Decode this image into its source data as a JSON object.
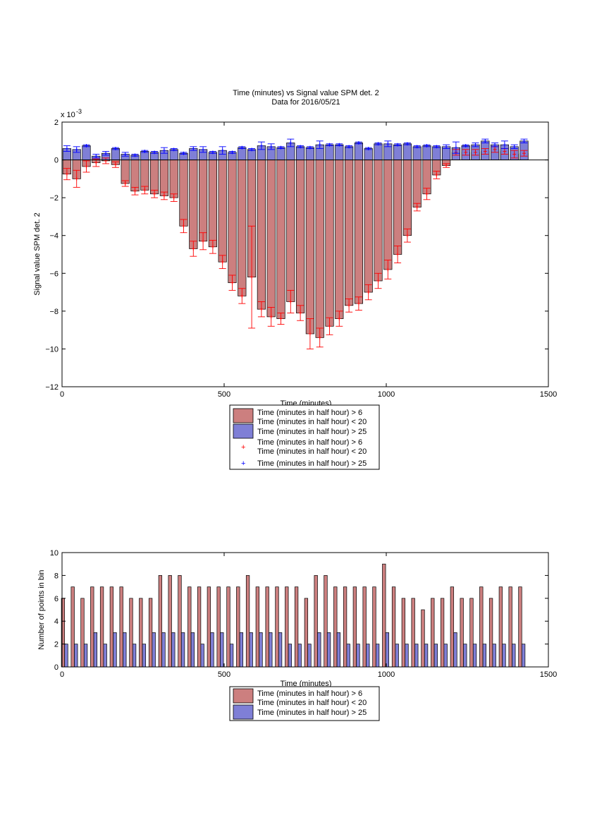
{
  "chart_data": [
    {
      "type": "bar",
      "title": "Time (minutes) vs Signal value SPM det. 2",
      "subtitle": "Data for 2016/05/21",
      "xlabel": "Time (minutes)",
      "ylabel": "Signal value SPM det. 2",
      "y_exponent_label": "x 10",
      "y_exponent_power": "-3",
      "xlim": [
        0,
        1500
      ],
      "ylim": [
        -12,
        2
      ],
      "xticks": [
        "0",
        "500",
        "1000",
        "1500"
      ],
      "yticks": [
        "2",
        "0",
        "−2",
        "−4",
        "−6",
        "−8",
        "−10",
        "−12"
      ],
      "bar_width": 25,
      "legend_position": "below-center",
      "legend": [
        {
          "label": "Time (minutes in half hour) > 6",
          "label2": "Time (minutes in half hour) < 20",
          "kind": "bar",
          "color": "#cc7f7f"
        },
        {
          "label": "Time (minutes in half hour) > 25",
          "kind": "bar",
          "color": "#7f7fd6"
        },
        {
          "label": "Time (minutes in half hour) > 6",
          "label2": "Time (minutes in half hour) < 20",
          "kind": "marker",
          "color": "#ff0000"
        },
        {
          "label": "Time (minutes in half hour) > 25",
          "kind": "marker",
          "color": "#0000ff"
        }
      ],
      "series": [
        {
          "name": "Time (minutes in half hour) > 6, < 20",
          "color": "#cc7f7f",
          "errcolor": "#ff0000",
          "x": [
            15,
            45,
            75,
            105,
            135,
            165,
            195,
            225,
            255,
            285,
            315,
            345,
            375,
            405,
            435,
            465,
            495,
            525,
            555,
            585,
            615,
            645,
            675,
            705,
            735,
            765,
            795,
            825,
            855,
            885,
            915,
            945,
            975,
            1005,
            1035,
            1065,
            1095,
            1125,
            1155,
            1185,
            1215,
            1245,
            1275,
            1305,
            1335,
            1365,
            1395,
            1425
          ],
          "values": [
            -0.75,
            -1.0,
            -0.35,
            -0.15,
            -0.05,
            -0.25,
            -1.25,
            -1.65,
            -1.6,
            -1.8,
            -1.9,
            -2.0,
            -3.5,
            -4.7,
            -4.3,
            -4.6,
            -5.4,
            -6.5,
            -7.2,
            -6.2,
            -7.9,
            -8.3,
            -8.4,
            -7.5,
            -8.1,
            -9.2,
            -9.4,
            -8.8,
            -8.4,
            -7.7,
            -7.6,
            -7.0,
            -6.4,
            -5.8,
            -5.0,
            -4.0,
            -2.5,
            -1.8,
            -0.8,
            -0.3,
            0.4,
            0.4,
            0.4,
            0.45,
            0.55,
            0.45,
            0.3,
            0.35
          ],
          "err": [
            0.3,
            0.45,
            0.3,
            0.2,
            0.15,
            0.15,
            0.15,
            0.2,
            0.2,
            0.2,
            0.2,
            0.2,
            0.35,
            0.4,
            0.45,
            0.35,
            0.35,
            0.4,
            0.4,
            2.7,
            0.4,
            0.5,
            0.3,
            0.6,
            0.4,
            0.8,
            0.5,
            0.45,
            0.4,
            0.35,
            0.35,
            0.4,
            0.4,
            0.5,
            0.45,
            0.35,
            0.2,
            0.3,
            0.2,
            0.1,
            0.15,
            0.15,
            0.15,
            0.15,
            0.15,
            0.15,
            0.2,
            0.15
          ]
        },
        {
          "name": "Time (minutes in half hour) > 25",
          "color": "#7f7fd6",
          "errcolor": "#0000ff",
          "x": [
            15,
            45,
            75,
            105,
            135,
            165,
            195,
            225,
            255,
            285,
            315,
            345,
            375,
            405,
            435,
            465,
            495,
            525,
            555,
            585,
            615,
            645,
            675,
            705,
            735,
            765,
            795,
            825,
            855,
            885,
            915,
            945,
            975,
            1005,
            1035,
            1065,
            1095,
            1125,
            1155,
            1185,
            1215,
            1245,
            1275,
            1305,
            1335,
            1365,
            1395,
            1425
          ],
          "values": [
            0.6,
            0.55,
            0.75,
            0.2,
            0.35,
            0.6,
            0.3,
            0.25,
            0.45,
            0.4,
            0.5,
            0.55,
            0.35,
            0.6,
            0.55,
            0.4,
            0.5,
            0.4,
            0.65,
            0.55,
            0.75,
            0.7,
            0.65,
            0.9,
            0.7,
            0.65,
            0.8,
            0.8,
            0.8,
            0.7,
            0.9,
            0.6,
            0.85,
            0.85,
            0.8,
            0.85,
            0.7,
            0.75,
            0.7,
            0.7,
            0.65,
            0.75,
            0.8,
            1.0,
            0.8,
            0.8,
            0.7,
            1.0
          ],
          "err": [
            0.15,
            0.15,
            0.05,
            0.1,
            0.1,
            0.05,
            0.1,
            0.05,
            0.05,
            0.05,
            0.15,
            0.05,
            0.05,
            0.1,
            0.15,
            0.05,
            0.2,
            0.05,
            0.05,
            0.05,
            0.2,
            0.15,
            0.05,
            0.2,
            0.05,
            0.05,
            0.2,
            0.05,
            0.05,
            0.05,
            0.05,
            0.05,
            0.05,
            0.15,
            0.05,
            0.05,
            0.05,
            0.05,
            0.05,
            0.1,
            0.3,
            0.05,
            0.1,
            0.1,
            0.1,
            0.2,
            0.1,
            0.1
          ]
        }
      ]
    },
    {
      "type": "bar",
      "xlabel": "Time (minutes)",
      "ylabel": "Number of points in bin",
      "xlim": [
        0,
        1500
      ],
      "ylim": [
        0,
        10
      ],
      "xticks": [
        "0",
        "500",
        "1000",
        "1500"
      ],
      "yticks": [
        "0",
        "2",
        "4",
        "6",
        "8",
        "10"
      ],
      "legend_position": "below-center",
      "legend": [
        {
          "label": "Time (minutes in half hour) > 6",
          "label2": "Time (minutes in half hour) < 20",
          "color": "#cc7f7f"
        },
        {
          "label": "Time (minutes in half hour) > 25",
          "color": "#7f7fd6"
        }
      ],
      "series": [
        {
          "name": "Time (minutes in half hour) > 6, < 20",
          "color": "#cc7f7f",
          "x": [
            3,
            33,
            63,
            93,
            123,
            153,
            183,
            213,
            243,
            273,
            303,
            333,
            363,
            393,
            423,
            453,
            483,
            513,
            543,
            573,
            603,
            633,
            663,
            693,
            723,
            753,
            783,
            813,
            843,
            873,
            903,
            933,
            963,
            993,
            1023,
            1053,
            1083,
            1113,
            1143,
            1173,
            1203,
            1233,
            1263,
            1293,
            1323,
            1353,
            1383,
            1413
          ],
          "values": [
            6,
            7,
            6,
            7,
            7,
            7,
            7,
            6,
            6,
            6,
            8,
            8,
            8,
            7,
            7,
            7,
            7,
            7,
            7,
            8,
            7,
            7,
            7,
            7,
            7,
            6,
            8,
            8,
            7,
            7,
            7,
            7,
            7,
            9,
            7,
            6,
            6,
            5,
            6,
            6,
            7,
            6,
            6,
            7,
            6,
            7,
            7,
            7
          ]
        },
        {
          "name": "Time (minutes in half hour) > 25",
          "color": "#7f7fd6",
          "x": [
            13,
            43,
            73,
            103,
            133,
            163,
            193,
            223,
            253,
            283,
            313,
            343,
            373,
            403,
            433,
            463,
            493,
            523,
            553,
            583,
            613,
            643,
            673,
            703,
            733,
            763,
            793,
            823,
            853,
            883,
            913,
            943,
            973,
            1003,
            1033,
            1063,
            1093,
            1123,
            1153,
            1183,
            1213,
            1243,
            1273,
            1303,
            1333,
            1363,
            1393,
            1423
          ],
          "values": [
            2,
            2,
            2,
            3,
            2,
            3,
            3,
            2,
            2,
            3,
            3,
            3,
            3,
            3,
            2,
            3,
            3,
            2,
            3,
            3,
            3,
            3,
            3,
            2,
            2,
            2,
            3,
            3,
            3,
            2,
            2,
            2,
            2,
            3,
            2,
            2,
            2,
            2,
            2,
            2,
            3,
            2,
            2,
            2,
            2,
            2,
            2,
            2
          ]
        }
      ]
    }
  ]
}
